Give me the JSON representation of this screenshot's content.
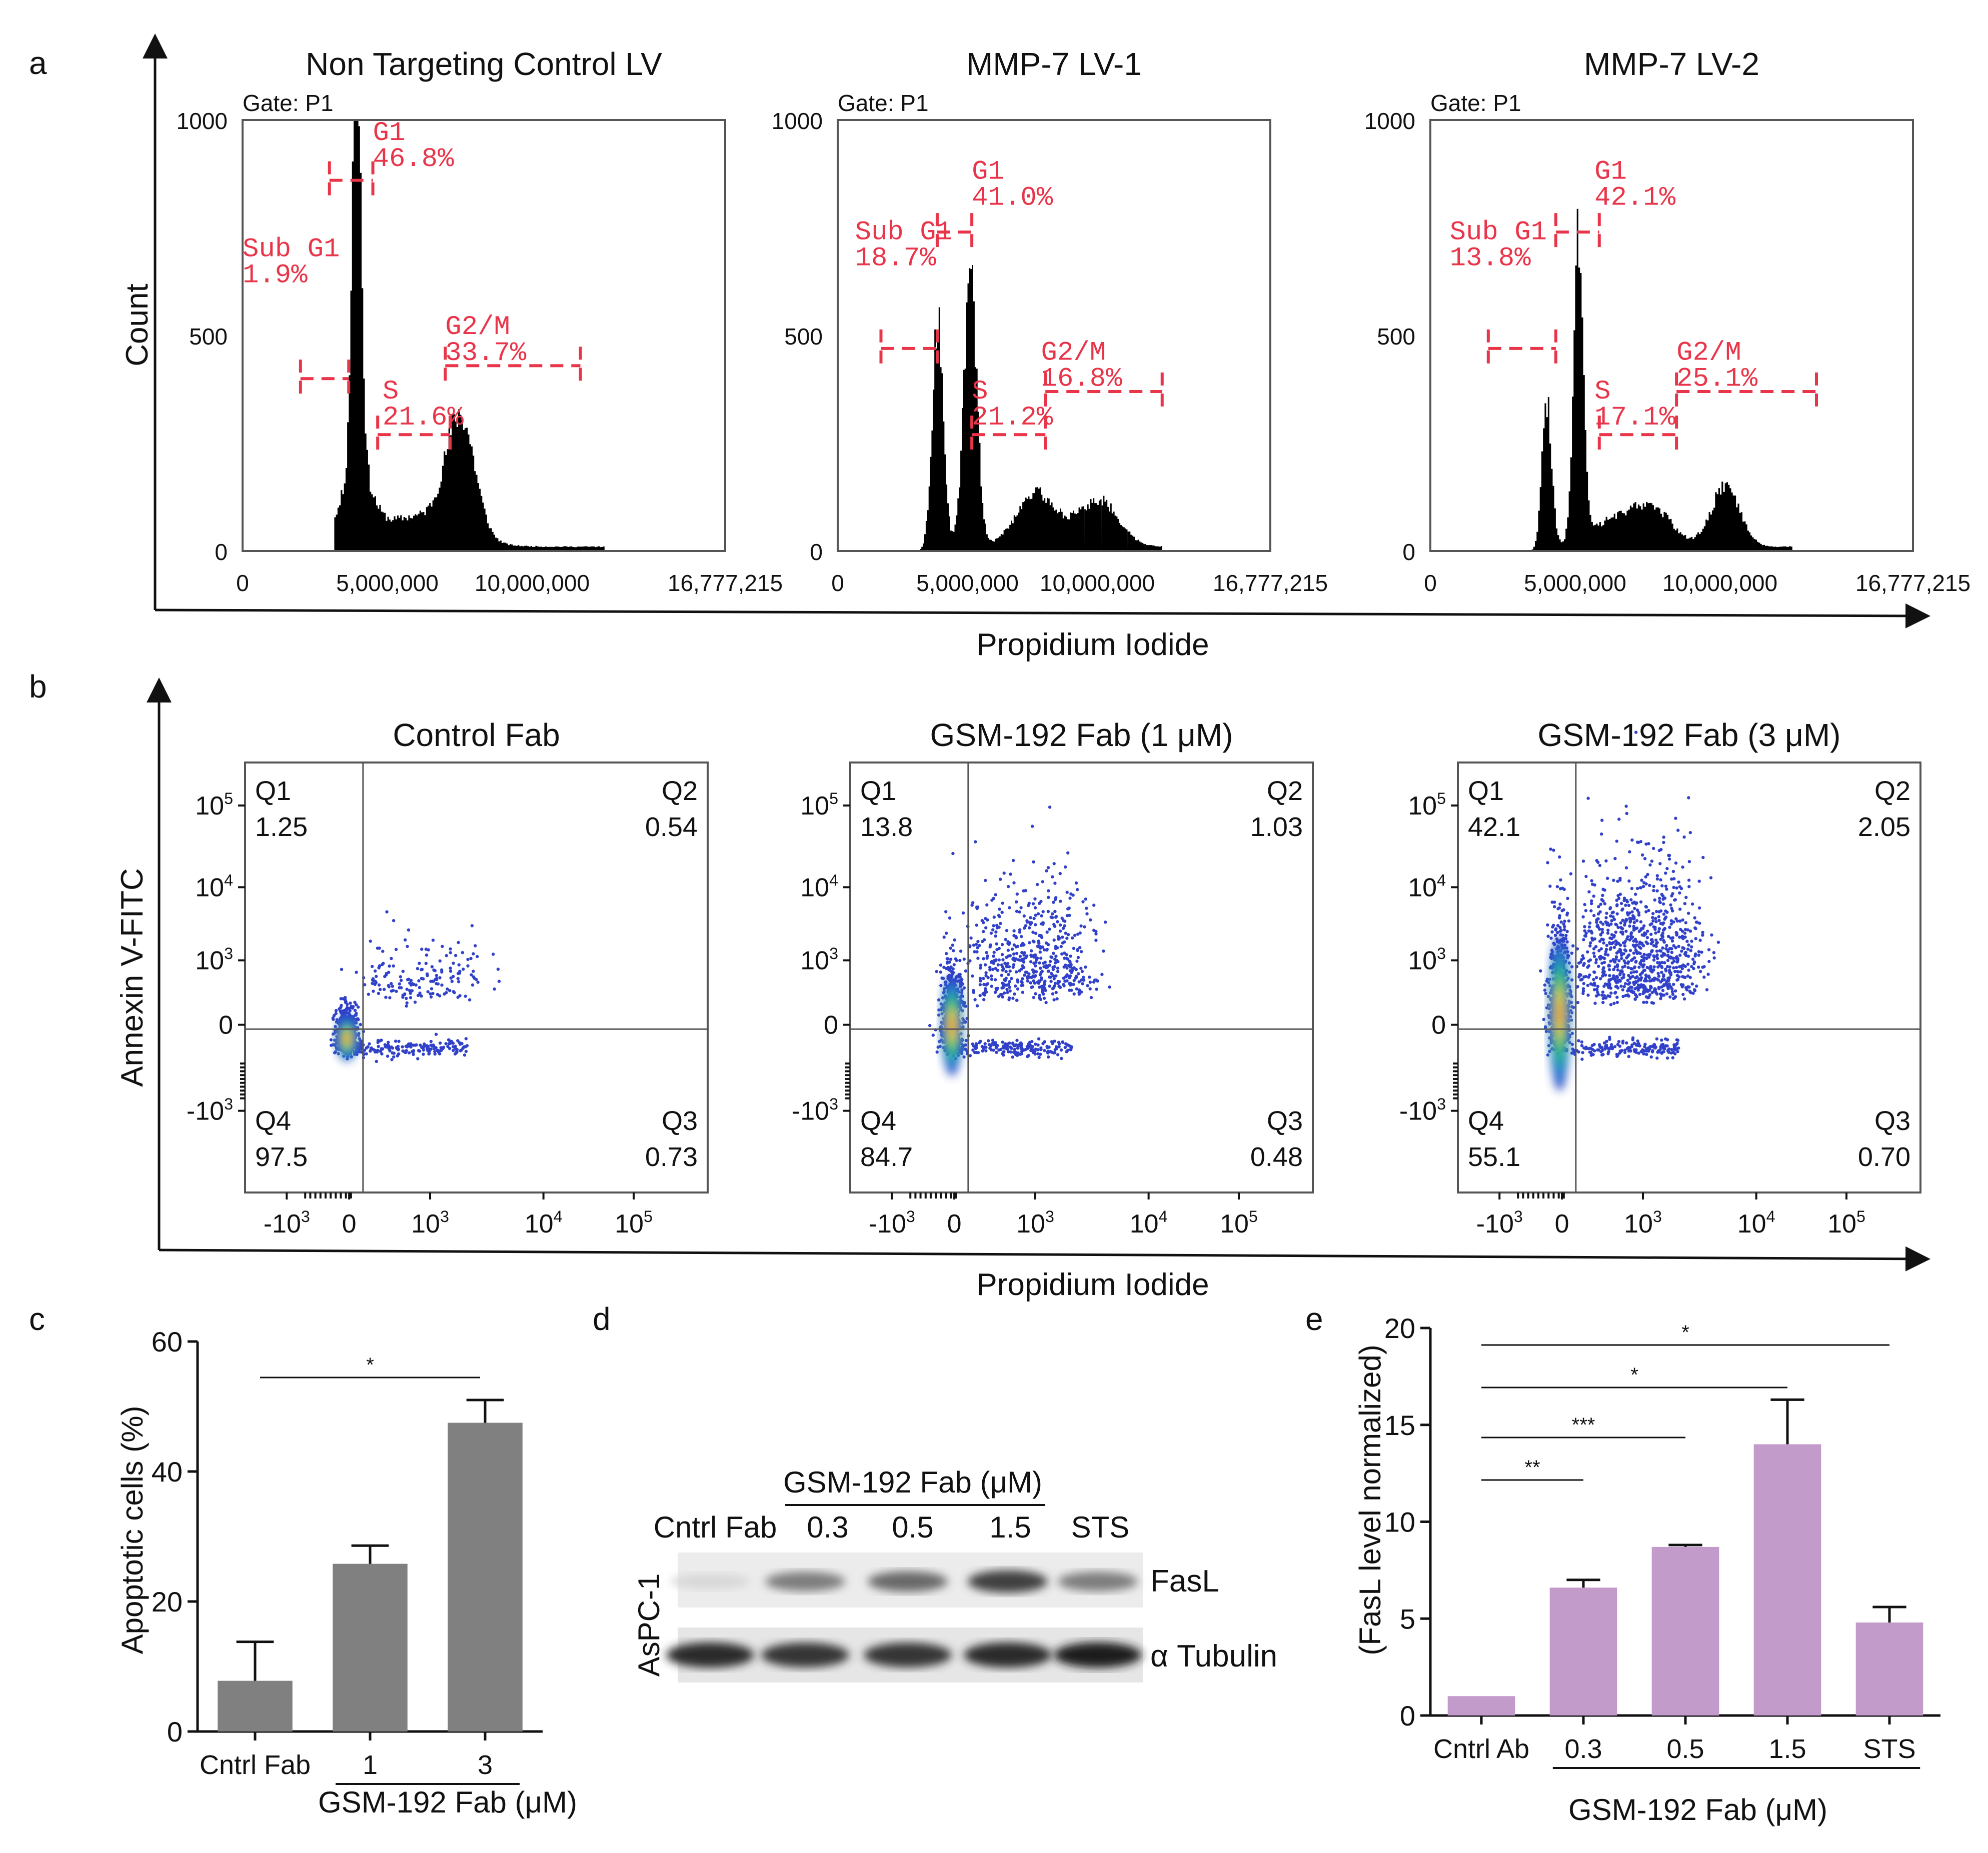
{
  "panel_letters": {
    "a": "a",
    "b": "b",
    "c": "c",
    "d": "d",
    "e": "e"
  },
  "colors": {
    "gate_red": "#e8354a",
    "bar_gray": "#808080",
    "bar_purple": "#c29bcb",
    "dot_blue": "#3040c8",
    "hist_black": "#000000"
  },
  "panel_a": {
    "y_title": "Count",
    "x_title": "Propidium Iodide",
    "gate_label": "Gate: P1",
    "y_ticks": [
      "1000",
      "500",
      "0"
    ],
    "x_ticks": [
      "0",
      "5,000,000",
      "10,000,000",
      "16,777,215"
    ],
    "plots": [
      {
        "title": "Non Targeting Control LV",
        "gates": [
          {
            "name": "Sub G1",
            "value": "1.9%"
          },
          {
            "name": "G1",
            "value": "46.8%"
          },
          {
            "name": "S",
            "value": "21.6%"
          },
          {
            "name": "G2/M",
            "value": "33.7%"
          }
        ]
      },
      {
        "title": "MMP-7 LV-1",
        "gates": [
          {
            "name": "Sub G1",
            "value": "18.7%"
          },
          {
            "name": "G1",
            "value": "41.0%"
          },
          {
            "name": "S",
            "value": "21.2%"
          },
          {
            "name": "G2/M",
            "value": "16.8%"
          }
        ]
      },
      {
        "title": "MMP-7 LV-2",
        "gates": [
          {
            "name": "Sub G1",
            "value": "13.8%"
          },
          {
            "name": "G1",
            "value": "42.1%"
          },
          {
            "name": "S",
            "value": "17.1%"
          },
          {
            "name": "G2/M",
            "value": "25.1%"
          }
        ]
      }
    ]
  },
  "panel_b": {
    "y_title": "Annexin V-FITC",
    "x_title": "Propidium Iodide",
    "y_ticks": [
      {
        "b": "10",
        "e": "5"
      },
      {
        "b": "10",
        "e": "4"
      },
      {
        "b": "10",
        "e": "3"
      },
      {
        "b": "0",
        "e": ""
      },
      {
        "b": "-10",
        "e": "3"
      }
    ],
    "x_ticks": [
      {
        "b": "-10",
        "e": "3"
      },
      {
        "b": "0",
        "e": ""
      },
      {
        "b": "10",
        "e": "3"
      },
      {
        "b": "10",
        "e": "4"
      },
      {
        "b": "10",
        "e": "5"
      }
    ],
    "plots": [
      {
        "title": "Control Fab",
        "quadrants": [
          {
            "name": "Q1",
            "value": "1.25"
          },
          {
            "name": "Q2",
            "value": "0.54"
          },
          {
            "name": "Q4",
            "value": "97.5"
          },
          {
            "name": "Q3",
            "value": "0.73"
          }
        ]
      },
      {
        "title": "GSM-192 Fab (1 μM)",
        "quadrants": [
          {
            "name": "Q1",
            "value": "13.8"
          },
          {
            "name": "Q2",
            "value": "1.03"
          },
          {
            "name": "Q4",
            "value": "84.7"
          },
          {
            "name": "Q3",
            "value": "0.48"
          }
        ]
      },
      {
        "title": "GSM-192 Fab (3 μM)",
        "quadrants": [
          {
            "name": "Q1",
            "value": "42.1"
          },
          {
            "name": "Q2",
            "value": "2.05"
          },
          {
            "name": "Q4",
            "value": "55.1"
          },
          {
            "name": "Q3",
            "value": "0.70"
          }
        ]
      }
    ]
  },
  "panel_d": {
    "cell_line": "AsPC-1",
    "treatment_label": "GSM-192 Fab (μM)",
    "lanes": [
      "Cntrl Fab",
      "0.3",
      "0.5",
      "1.5",
      "STS"
    ],
    "bands": [
      "FasL",
      "α Tubulin"
    ],
    "fasl_intensity": [
      0.1,
      0.55,
      0.65,
      0.85,
      0.55
    ],
    "tubulin_intensity": [
      0.9,
      0.85,
      0.85,
      0.9,
      0.95
    ]
  },
  "chart_data": [
    {
      "type": "bar",
      "panel": "c",
      "categories": [
        "Cntrl Fab",
        "1",
        "3"
      ],
      "values": [
        7.8,
        25.8,
        47.5
      ],
      "errors": [
        6.0,
        2.8,
        3.5
      ],
      "ylabel": "Apoptotic cells (%)",
      "xlabel": "GSM-192 Fab (μM)",
      "ylim": [
        0,
        60
      ],
      "yticks": [
        "0",
        "20",
        "40",
        "60"
      ],
      "significance": [
        {
          "from": 0,
          "to": 2,
          "label": "*"
        }
      ]
    },
    {
      "type": "bar",
      "panel": "e",
      "categories": [
        "Cntrl Ab",
        "0.3",
        "0.5",
        "1.5",
        "STS"
      ],
      "values": [
        1.0,
        6.6,
        8.7,
        14.0,
        4.8
      ],
      "errors": [
        0.0,
        0.4,
        0.1,
        2.3,
        0.8
      ],
      "ylabel": "(FasL level normalized)",
      "xlabel": "GSM-192 Fab (μM)",
      "ylim": [
        0,
        20
      ],
      "yticks": [
        "0",
        "5",
        "10",
        "15",
        "20"
      ],
      "significance": [
        {
          "from": 0,
          "to": 1,
          "label": "**"
        },
        {
          "from": 0,
          "to": 2,
          "label": "***"
        },
        {
          "from": 0,
          "to": 3,
          "label": "*"
        },
        {
          "from": 0,
          "to": 4,
          "label": "*"
        }
      ]
    }
  ]
}
